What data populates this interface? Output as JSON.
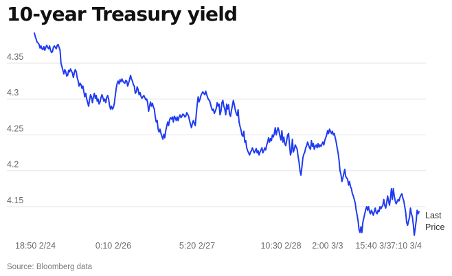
{
  "title": "10-year Treasury yield",
  "source": "Source: Bloomberg data",
  "colors": {
    "line": "#1f3bf0",
    "grid": "#e3e3e3",
    "tick_text": "#6b6b6b"
  },
  "chart_data": {
    "type": "line",
    "title": "10-year Treasury yield",
    "xlabel": "",
    "ylabel": "",
    "grid": true,
    "ylim": [
      4.105,
      4.395
    ],
    "y_ticks": [
      4.15,
      4.2,
      4.25,
      4.3,
      4.35
    ],
    "y_tick_labels": [
      "4.15",
      "4.2",
      "4.25",
      "4.3",
      "4.35"
    ],
    "x_ticks": [
      {
        "label": "18:50 2/24",
        "index": 0
      },
      {
        "label": "0:10 2/26",
        "index": 83
      },
      {
        "label": "5:20 2/27",
        "index": 171
      },
      {
        "label": "10:30 2/28",
        "index": 259
      },
      {
        "label": "2:00 3/3",
        "index": 308
      },
      {
        "label": "15:40 3/3",
        "index": 356
      },
      {
        "label": "7:10 3/4",
        "index": 414
      }
    ],
    "series": [
      {
        "name": "Last Price",
        "values": [
          4.392,
          4.387,
          4.383,
          4.379,
          4.378,
          4.376,
          4.371,
          4.374,
          4.37,
          4.369,
          4.373,
          4.368,
          4.372,
          4.375,
          4.372,
          4.37,
          4.374,
          4.368,
          4.365,
          4.366,
          4.372,
          4.374,
          4.372,
          4.37,
          4.375,
          4.376,
          4.372,
          4.368,
          4.35,
          4.345,
          4.34,
          4.335,
          4.341,
          4.338,
          4.332,
          4.333,
          4.34,
          4.338,
          4.342,
          4.339,
          4.336,
          4.33,
          4.337,
          4.341,
          4.338,
          4.33,
          4.325,
          4.318,
          4.322,
          4.32,
          4.315,
          4.318,
          4.31,
          4.303,
          4.308,
          4.3,
          4.295,
          4.29,
          4.299,
          4.306,
          4.303,
          4.295,
          4.303,
          4.308,
          4.301,
          4.305,
          4.297,
          4.3,
          4.293,
          4.296,
          4.302,
          4.306,
          4.302,
          4.297,
          4.3,
          4.295,
          4.302,
          4.305,
          4.3,
          4.291,
          4.286,
          4.29,
          4.286,
          4.288,
          4.294,
          4.305,
          4.315,
          4.322,
          4.325,
          4.321,
          4.327,
          4.324,
          4.328,
          4.325,
          4.323,
          4.322,
          4.326,
          4.325,
          4.318,
          4.322,
          4.327,
          4.333,
          4.328,
          4.325,
          4.32,
          4.318,
          4.308,
          4.31,
          4.317,
          4.313,
          4.306,
          4.309,
          4.304,
          4.301,
          4.303,
          4.305,
          4.302,
          4.299,
          4.3,
          4.295,
          4.283,
          4.29,
          4.296,
          4.29,
          4.294,
          4.289,
          4.286,
          4.275,
          4.268,
          4.27,
          4.258,
          4.254,
          4.258,
          4.252,
          4.248,
          4.244,
          4.251,
          4.246,
          4.256,
          4.262,
          4.268,
          4.263,
          4.271,
          4.274,
          4.272,
          4.275,
          4.268,
          4.276,
          4.274,
          4.27,
          4.275,
          4.27,
          4.275,
          4.278,
          4.274,
          4.276,
          4.279,
          4.278,
          4.275,
          4.276,
          4.281,
          4.279,
          4.276,
          4.27,
          4.265,
          4.26,
          4.266,
          4.27,
          4.266,
          4.263,
          4.278,
          4.292,
          4.303,
          4.296,
          4.3,
          4.305,
          4.308,
          4.31,
          4.308,
          4.306,
          4.311,
          4.306,
          4.302,
          4.299,
          4.298,
          4.293,
          4.288,
          4.284,
          4.286,
          4.28,
          4.283,
          4.287,
          4.295,
          4.29,
          4.293,
          4.278,
          4.283,
          4.295,
          4.298,
          4.29,
          4.286,
          4.278,
          4.293,
          4.286,
          4.292,
          4.279,
          4.276,
          4.284,
          4.291,
          4.298,
          4.292,
          4.285,
          4.28,
          4.277,
          4.285,
          4.268,
          4.262,
          4.257,
          4.25,
          4.248,
          4.255,
          4.24,
          4.242,
          4.232,
          4.228,
          4.225,
          4.222,
          4.226,
          4.228,
          4.232,
          4.228,
          4.225,
          4.228,
          4.231,
          4.225,
          4.228,
          4.222,
          4.226,
          4.229,
          4.232,
          4.225,
          4.228,
          4.232,
          4.229,
          4.236,
          4.24,
          4.246,
          4.24,
          4.245,
          4.242,
          4.25,
          4.247,
          4.252,
          4.26,
          4.25,
          4.256,
          4.26,
          4.255,
          4.248,
          4.243,
          4.256,
          4.24,
          4.247,
          4.238,
          4.235,
          4.242,
          4.25,
          4.252,
          4.236,
          4.222,
          4.227,
          4.244,
          4.226,
          4.23,
          4.236,
          4.233,
          4.23,
          4.22,
          4.212,
          4.2,
          4.194,
          4.205,
          4.218,
          4.223,
          4.226,
          4.232,
          4.235,
          4.24,
          4.236,
          4.232,
          4.23,
          4.242,
          4.234,
          4.238,
          4.23,
          4.234,
          4.236,
          4.232,
          4.238,
          4.233,
          4.236,
          4.234,
          4.237,
          4.24,
          4.236,
          4.242,
          4.246,
          4.25,
          4.256,
          4.252,
          4.258,
          4.255,
          4.252,
          4.255,
          4.25,
          4.252,
          4.246,
          4.24,
          4.232,
          4.225,
          4.215,
          4.2,
          4.195,
          4.185,
          4.19,
          4.196,
          4.202,
          4.192,
          4.19,
          4.188,
          4.18,
          4.185,
          4.178,
          4.175,
          4.168,
          4.165,
          4.16,
          4.155,
          4.145,
          4.138,
          4.13,
          4.118,
          4.114,
          4.122,
          4.114,
          4.128,
          4.134,
          4.14,
          4.146,
          4.15,
          4.145,
          4.15,
          4.143,
          4.14,
          4.145,
          4.142,
          4.138,
          4.143,
          4.148,
          4.142,
          4.14,
          4.145,
          4.143,
          4.15,
          4.147,
          4.15,
          4.152,
          4.16,
          4.152,
          4.148,
          4.155,
          4.165,
          4.158,
          4.152,
          4.162,
          4.175,
          4.16,
          4.175,
          4.165,
          4.158,
          4.154,
          4.157,
          4.16,
          4.158,
          4.163,
          4.166,
          4.168,
          4.162,
          4.158,
          4.15,
          4.142,
          4.128,
          4.124,
          4.13,
          4.135,
          4.148,
          4.14,
          4.136,
          4.125,
          4.11,
          4.12,
          4.13,
          4.145,
          4.14,
          4.143
        ]
      }
    ],
    "legend": {
      "text_lines": [
        "Last",
        "Price"
      ],
      "placement": "right, at line end"
    }
  }
}
